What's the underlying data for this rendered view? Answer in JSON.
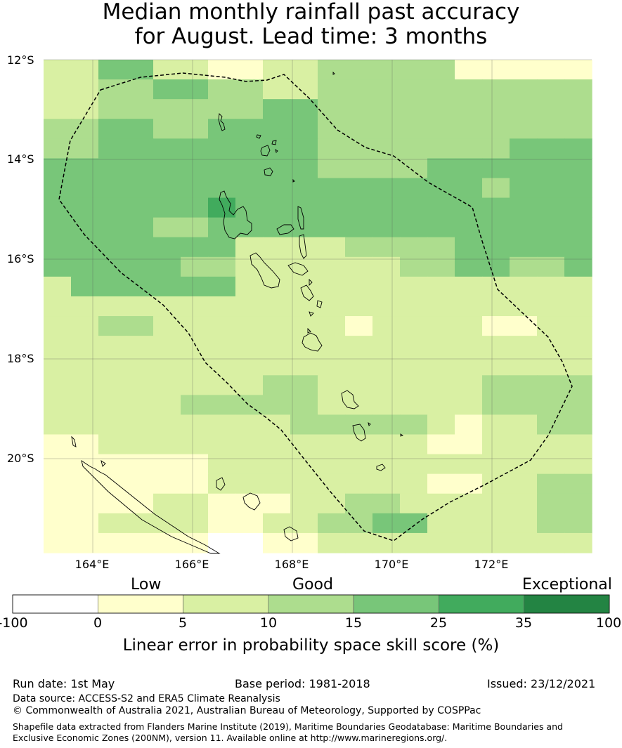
{
  "title": {
    "line1": "Median monthly rainfall past accuracy",
    "line2": "for August. Lead time: 3 months"
  },
  "map": {
    "lat_labels": [
      "12°S",
      "14°S",
      "16°S",
      "18°S",
      "20°S"
    ],
    "lon_labels": [
      "164°E",
      "166°E",
      "168°E",
      "170°E",
      "172°E"
    ],
    "extent": {
      "lon": [
        163,
        174
      ],
      "lat": [
        -21.9,
        -12
      ]
    },
    "grid_cell_deg": 0.825,
    "skill_grid": [
      [
        2,
        2,
        4,
        4,
        2,
        2,
        1,
        1,
        2,
        2,
        3,
        3,
        3,
        3,
        3,
        1,
        1,
        1,
        1,
        1
      ],
      [
        2,
        2,
        3,
        3,
        4,
        4,
        3,
        3,
        2,
        2,
        3,
        3,
        3,
        3,
        3,
        3,
        3,
        3,
        3,
        3
      ],
      [
        2,
        2,
        3,
        3,
        3,
        3,
        3,
        3,
        4,
        4,
        3,
        3,
        3,
        3,
        3,
        3,
        3,
        3,
        3,
        3
      ],
      [
        3,
        3,
        4,
        4,
        3,
        3,
        4,
        4,
        4,
        4,
        3,
        3,
        3,
        3,
        3,
        3,
        3,
        3,
        3,
        3
      ],
      [
        3,
        3,
        4,
        4,
        4,
        4,
        4,
        4,
        4,
        4,
        3,
        3,
        3,
        3,
        3,
        3,
        3,
        4,
        4,
        4
      ],
      [
        4,
        4,
        4,
        4,
        4,
        4,
        4,
        4,
        4,
        4,
        3,
        3,
        3,
        3,
        4,
        4,
        4,
        4,
        4,
        4
      ],
      [
        4,
        4,
        4,
        4,
        4,
        4,
        4,
        4,
        4,
        4,
        4,
        4,
        4,
        4,
        4,
        4,
        3,
        4,
        4,
        4
      ],
      [
        4,
        4,
        4,
        4,
        4,
        4,
        5,
        4,
        4,
        4,
        4,
        4,
        4,
        4,
        4,
        4,
        4,
        4,
        4,
        4
      ],
      [
        4,
        4,
        4,
        4,
        3,
        3,
        4,
        4,
        4,
        4,
        4,
        4,
        4,
        4,
        4,
        4,
        4,
        4,
        4,
        4
      ],
      [
        4,
        4,
        4,
        4,
        4,
        4,
        4,
        2,
        2,
        2,
        2,
        3,
        3,
        3,
        3,
        4,
        4,
        4,
        4,
        4
      ],
      [
        4,
        4,
        4,
        4,
        4,
        3,
        3,
        2,
        2,
        2,
        2,
        2,
        2,
        3,
        3,
        4,
        4,
        3,
        3,
        4
      ],
      [
        2,
        4,
        4,
        4,
        4,
        4,
        4,
        2,
        2,
        2,
        2,
        2,
        2,
        2,
        2,
        2,
        2,
        2,
        2,
        2
      ],
      [
        2,
        2,
        2,
        2,
        2,
        2,
        2,
        2,
        2,
        2,
        2,
        2,
        2,
        2,
        2,
        2,
        2,
        2,
        2,
        2
      ],
      [
        2,
        2,
        3,
        3,
        2,
        2,
        2,
        2,
        2,
        2,
        2,
        1,
        2,
        2,
        2,
        2,
        1,
        1,
        2,
        2
      ],
      [
        2,
        2,
        2,
        2,
        2,
        2,
        2,
        2,
        2,
        2,
        2,
        2,
        2,
        2,
        2,
        2,
        2,
        2,
        2,
        2
      ],
      [
        2,
        2,
        2,
        2,
        2,
        2,
        2,
        2,
        2,
        2,
        2,
        2,
        2,
        2,
        2,
        2,
        2,
        2,
        2,
        2
      ],
      [
        2,
        2,
        2,
        2,
        2,
        2,
        2,
        2,
        3,
        3,
        2,
        2,
        2,
        2,
        2,
        2,
        3,
        3,
        3,
        3
      ],
      [
        2,
        2,
        2,
        2,
        2,
        3,
        3,
        3,
        3,
        3,
        2,
        2,
        2,
        2,
        2,
        2,
        3,
        3,
        3,
        3
      ],
      [
        2,
        2,
        2,
        2,
        2,
        2,
        2,
        2,
        2,
        3,
        3,
        3,
        3,
        3,
        2,
        1,
        2,
        2,
        3,
        3
      ],
      [
        1,
        1,
        2,
        2,
        2,
        2,
        2,
        2,
        2,
        2,
        2,
        2,
        2,
        2,
        1,
        1,
        2,
        2,
        2,
        2
      ],
      [
        1,
        1,
        1,
        1,
        1,
        1,
        2,
        2,
        2,
        2,
        2,
        2,
        2,
        2,
        2,
        2,
        2,
        2,
        2,
        2
      ],
      [
        1,
        1,
        1,
        1,
        1,
        1,
        2,
        2,
        2,
        2,
        2,
        2,
        2,
        2,
        1,
        1,
        2,
        2,
        3,
        3
      ],
      [
        1,
        1,
        1,
        1,
        2,
        2,
        1,
        1,
        1,
        2,
        2,
        3,
        3,
        2,
        2,
        2,
        2,
        2,
        3,
        3
      ],
      [
        1,
        1,
        2,
        2,
        2,
        2,
        1,
        1,
        2,
        2,
        3,
        3,
        4,
        4,
        2,
        2,
        2,
        2,
        3,
        3
      ],
      [
        1,
        1,
        1,
        1,
        1,
        1,
        0,
        0,
        1,
        1,
        2,
        2,
        2,
        2,
        2,
        2,
        2,
        2,
        2,
        2
      ]
    ],
    "colors": {
      "land_outline": "#000000",
      "eez_line": "#000000",
      "gridline": "#555555"
    }
  },
  "colorbar": {
    "categories": [
      "Low",
      "Good",
      "Exceptional"
    ],
    "ticks": [
      "-100",
      "0",
      "5",
      "10",
      "15",
      "25",
      "35",
      "100"
    ],
    "colors": [
      "#ffffff",
      "#ffffcc",
      "#d9f0a3",
      "#addd8e",
      "#78c679",
      "#41ab5d",
      "#238443"
    ],
    "label": "Linear error in probability space skill score (%)"
  },
  "footer": {
    "run_date": "Run date: 1st May",
    "base_period": "Base period: 1981-2018",
    "issued": "Issued: 23/12/2021",
    "data_source": "Data source: ACCESS-S2 and ERA5 Climate Reanalysis",
    "copyright": "© Commonwealth of Australia 2021, Australian Bureau of Meteorology, Supported by COSPPac",
    "shapefile": "Shapefile data extracted from Flanders Marine Institute (2019), Maritime Boundaries Geodatabase: Maritime Boundaries and Exclusive Economic Zones (200NM), version 11. Available online at http://www.marineregions.org/."
  }
}
